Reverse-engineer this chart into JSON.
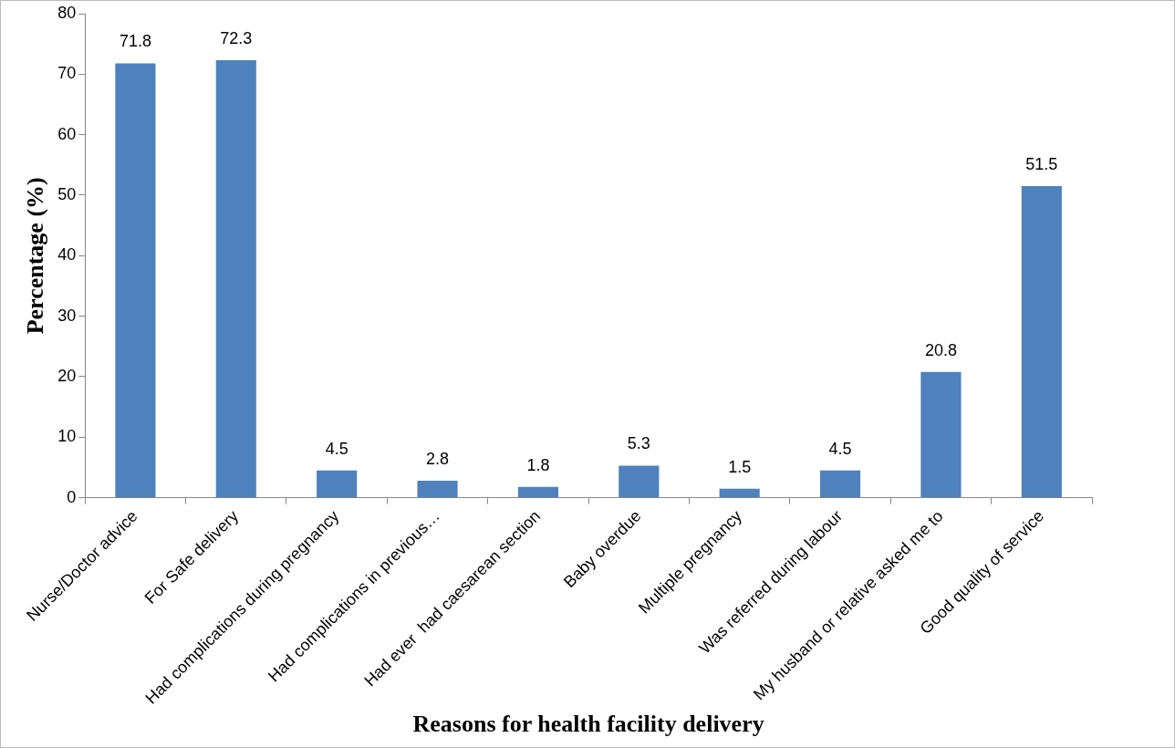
{
  "chart_data": {
    "type": "bar",
    "xlabel": "Reasons for health facility delivery",
    "ylabel": "Percentage (%)",
    "categories": [
      "Nurse/Doctor advice",
      "For Safe delivery",
      "Had complications during pregnancy",
      "Had complications in previous…",
      "Had ever  had caesarean section",
      "Baby overdue",
      "Multiple pregnancy",
      "Was referred during labour",
      "My husband or relative asked me to",
      "Good quality of service"
    ],
    "values": [
      71.8,
      72.3,
      4.5,
      2.8,
      1.8,
      5.3,
      1.5,
      4.5,
      20.8,
      51.5
    ],
    "color": "#4f81bd",
    "ylim": [
      0,
      80
    ],
    "yticks": [
      0,
      10,
      20,
      30,
      40,
      50,
      60,
      70,
      80
    ],
    "grid": false,
    "legend": false,
    "data_labels": true
  }
}
